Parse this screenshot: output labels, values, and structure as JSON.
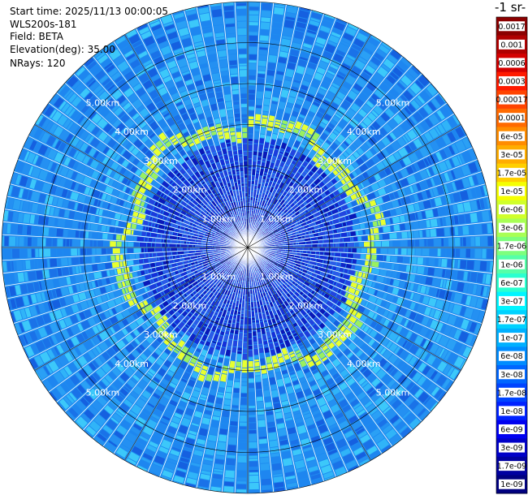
{
  "info": {
    "start_time": "Start time: 2025/11/13 00:00:05",
    "instrument": "WLS200s-181",
    "field": "Field: BETA",
    "elevation": "Elevation(deg): 35.00",
    "nrays": "NRays: 120"
  },
  "colorbar": {
    "title_visible": "-1 sr-",
    "labels": [
      "0.0017",
      "0.001",
      "0.0006",
      "0.0003",
      "0.00017",
      "0.0001",
      "6e-05",
      "3e-05",
      "1.7e-05",
      "1e-05",
      "6e-06",
      "3e-06",
      "1.7e-06",
      "1e-06",
      "6e-07",
      "3e-07",
      "1.7e-07",
      "1e-07",
      "6e-08",
      "3e-08",
      "1.7e-08",
      "1e-08",
      "6e-09",
      "3e-09",
      "1.7e-09",
      "1e-09"
    ],
    "colors": [
      "#8b0000",
      "#b00000",
      "#d40000",
      "#ff1a00",
      "#ff4400",
      "#ff6a00",
      "#ff8c00",
      "#ffad00",
      "#ffcf00",
      "#f5ff00",
      "#d0ff2a",
      "#a8ff55",
      "#7dff7d",
      "#55ffa8",
      "#2affd0",
      "#00f5ff",
      "#00d2ff",
      "#00b0ff",
      "#008cff",
      "#0066ff",
      "#0044ff",
      "#0022ff",
      "#0000f0",
      "#0000c8",
      "#0000a0",
      "#000080"
    ]
  },
  "chart_data": {
    "type": "heatmap",
    "projection": "polar PPI scan",
    "field": "BETA",
    "n_rays": 120,
    "elevation_deg": 35.0,
    "ring_labels": [
      "1.00km",
      "2.00km",
      "3.00km",
      "4.00km",
      "5.00km"
    ],
    "ring_ranges_km": [
      1,
      2,
      3,
      4,
      5
    ],
    "max_range_km": 6.0,
    "cloud_ring_range_km": [
      2.8,
      3.1
    ],
    "background_beta": "3e-08",
    "colormap": "jet"
  }
}
